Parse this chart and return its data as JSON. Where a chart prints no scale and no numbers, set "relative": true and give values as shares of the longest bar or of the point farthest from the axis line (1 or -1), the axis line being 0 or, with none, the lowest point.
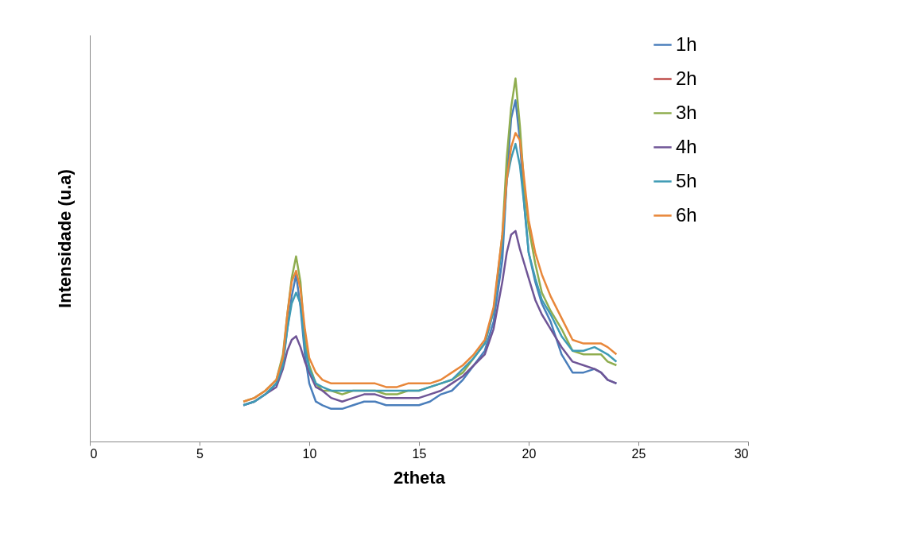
{
  "chart_data": {
    "type": "line",
    "xlabel": "2theta",
    "ylabel": "Intensidade (u.a)",
    "relative": true,
    "xlim": [
      0,
      30
    ],
    "xticks": [
      0,
      5,
      10,
      15,
      20,
      25,
      30
    ],
    "legend": "right",
    "grid": false,
    "marker": "none",
    "x": [
      7,
      7.5,
      8,
      8.5,
      8.8,
      9,
      9.2,
      9.4,
      9.6,
      9.8,
      10,
      10.3,
      10.6,
      11,
      11.5,
      12,
      12.5,
      13,
      13.5,
      14,
      14.5,
      15,
      15.5,
      16,
      16.5,
      17,
      17.5,
      18,
      18.4,
      18.8,
      19,
      19.2,
      19.4,
      19.6,
      19.8,
      20,
      20.3,
      20.6,
      21,
      21.5,
      22,
      22.5,
      23,
      23.3,
      23.6,
      24
    ],
    "series": [
      {
        "name": "1h",
        "color": "#4a7ebb",
        "values": [
          0.1,
          0.11,
          0.13,
          0.16,
          0.22,
          0.31,
          0.4,
          0.46,
          0.37,
          0.24,
          0.16,
          0.11,
          0.1,
          0.09,
          0.09,
          0.1,
          0.11,
          0.11,
          0.1,
          0.1,
          0.1,
          0.1,
          0.11,
          0.13,
          0.14,
          0.17,
          0.21,
          0.25,
          0.33,
          0.5,
          0.72,
          0.89,
          0.94,
          0.83,
          0.65,
          0.52,
          0.44,
          0.38,
          0.33,
          0.24,
          0.19,
          0.19,
          0.2,
          0.19,
          0.17,
          0.16
        ]
      },
      {
        "name": "2h",
        "color": "#be4b48",
        "values": [
          null,
          null,
          null,
          null,
          null,
          null,
          null,
          null,
          null,
          null,
          null,
          null,
          null,
          null,
          null,
          null,
          null,
          null,
          null,
          null,
          null,
          null,
          null,
          null,
          null,
          null,
          null,
          null,
          null,
          null,
          null,
          null,
          null,
          null,
          null,
          null,
          null,
          null,
          null,
          null,
          null,
          null,
          null,
          null,
          null,
          null
        ]
      },
      {
        "name": "3h",
        "color": "#8fad4f",
        "values": [
          0.11,
          0.12,
          0.14,
          0.17,
          0.24,
          0.35,
          0.45,
          0.51,
          0.44,
          0.28,
          0.21,
          0.16,
          0.14,
          0.14,
          0.13,
          0.14,
          0.14,
          0.14,
          0.13,
          0.13,
          0.14,
          0.14,
          0.15,
          0.16,
          0.17,
          0.19,
          0.23,
          0.27,
          0.36,
          0.57,
          0.78,
          0.92,
          1,
          0.87,
          0.7,
          0.59,
          0.49,
          0.41,
          0.36,
          0.31,
          0.25,
          0.24,
          0.24,
          0.24,
          0.22,
          0.21
        ]
      },
      {
        "name": "4h",
        "color": "#6f5596",
        "values": [
          0.1,
          0.11,
          0.13,
          0.15,
          0.2,
          0.25,
          0.28,
          0.29,
          0.26,
          0.22,
          0.19,
          0.15,
          0.14,
          0.12,
          0.11,
          0.12,
          0.13,
          0.13,
          0.12,
          0.12,
          0.12,
          0.12,
          0.13,
          0.14,
          0.16,
          0.18,
          0.21,
          0.24,
          0.31,
          0.44,
          0.52,
          0.57,
          0.58,
          0.53,
          0.49,
          0.45,
          0.39,
          0.35,
          0.31,
          0.26,
          0.22,
          0.21,
          0.2,
          0.19,
          0.17,
          0.16
        ]
      },
      {
        "name": "5h",
        "color": "#3f9bb5",
        "values": [
          0.1,
          0.11,
          0.13,
          0.16,
          0.21,
          0.31,
          0.38,
          0.41,
          0.38,
          0.26,
          0.2,
          0.16,
          0.15,
          0.14,
          0.14,
          0.14,
          0.14,
          0.14,
          0.14,
          0.14,
          0.14,
          0.14,
          0.15,
          0.16,
          0.17,
          0.2,
          0.23,
          0.27,
          0.36,
          0.54,
          0.72,
          0.78,
          0.82,
          0.76,
          0.65,
          0.52,
          0.45,
          0.39,
          0.35,
          0.29,
          0.25,
          0.25,
          0.26,
          0.25,
          0.24,
          0.22
        ]
      },
      {
        "name": "6h",
        "color": "#e8873a",
        "values": [
          0.11,
          0.12,
          0.14,
          0.17,
          0.23,
          0.35,
          0.44,
          0.47,
          0.42,
          0.31,
          0.23,
          0.19,
          0.17,
          0.16,
          0.16,
          0.16,
          0.16,
          0.16,
          0.15,
          0.15,
          0.16,
          0.16,
          0.16,
          0.17,
          0.19,
          0.21,
          0.24,
          0.28,
          0.37,
          0.57,
          0.72,
          0.81,
          0.85,
          0.83,
          0.72,
          0.61,
          0.52,
          0.46,
          0.4,
          0.34,
          0.28,
          0.27,
          0.27,
          0.27,
          0.26,
          0.24
        ]
      }
    ]
  }
}
